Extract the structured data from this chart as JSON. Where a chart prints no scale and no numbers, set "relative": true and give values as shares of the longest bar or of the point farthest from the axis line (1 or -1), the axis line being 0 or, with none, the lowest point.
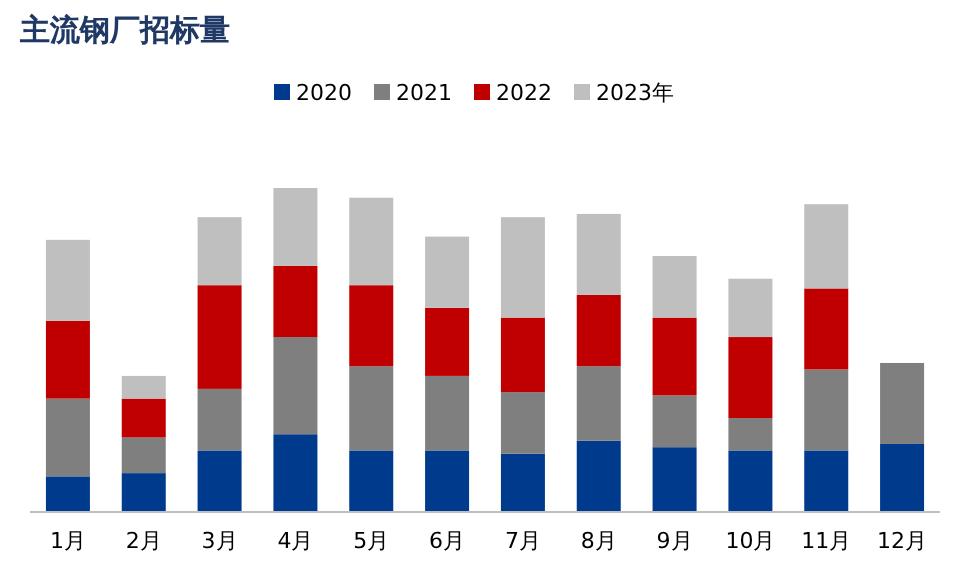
{
  "chart_data": {
    "type": "bar",
    "title": "主流钢厂招标量",
    "stacked": true,
    "relative": true,
    "legend": "top",
    "categories": [
      "1月",
      "2月",
      "3月",
      "4月",
      "5月",
      "6月",
      "7月",
      "8月",
      "9月",
      "10月",
      "11月",
      "12月"
    ],
    "series": [
      {
        "name": "2020",
        "color": "#003a8c",
        "values": [
          0.11,
          0.12,
          0.19,
          0.24,
          0.19,
          0.19,
          0.18,
          0.22,
          0.2,
          0.19,
          0.19,
          0.21
        ]
      },
      {
        "name": "2021",
        "color": "#7f7f7f",
        "values": [
          0.24,
          0.11,
          0.19,
          0.3,
          0.26,
          0.23,
          0.19,
          0.23,
          0.16,
          0.1,
          0.25,
          0.25
        ]
      },
      {
        "name": "2022",
        "color": "#c00000",
        "values": [
          0.24,
          0.12,
          0.32,
          0.22,
          0.25,
          0.21,
          0.23,
          0.22,
          0.24,
          0.25,
          0.25,
          null
        ]
      },
      {
        "name": "2023年",
        "color": "#bfbfbf",
        "values": [
          0.25,
          0.07,
          0.21,
          0.24,
          0.27,
          0.22,
          0.31,
          0.25,
          0.19,
          0.18,
          0.26,
          null
        ]
      }
    ]
  }
}
